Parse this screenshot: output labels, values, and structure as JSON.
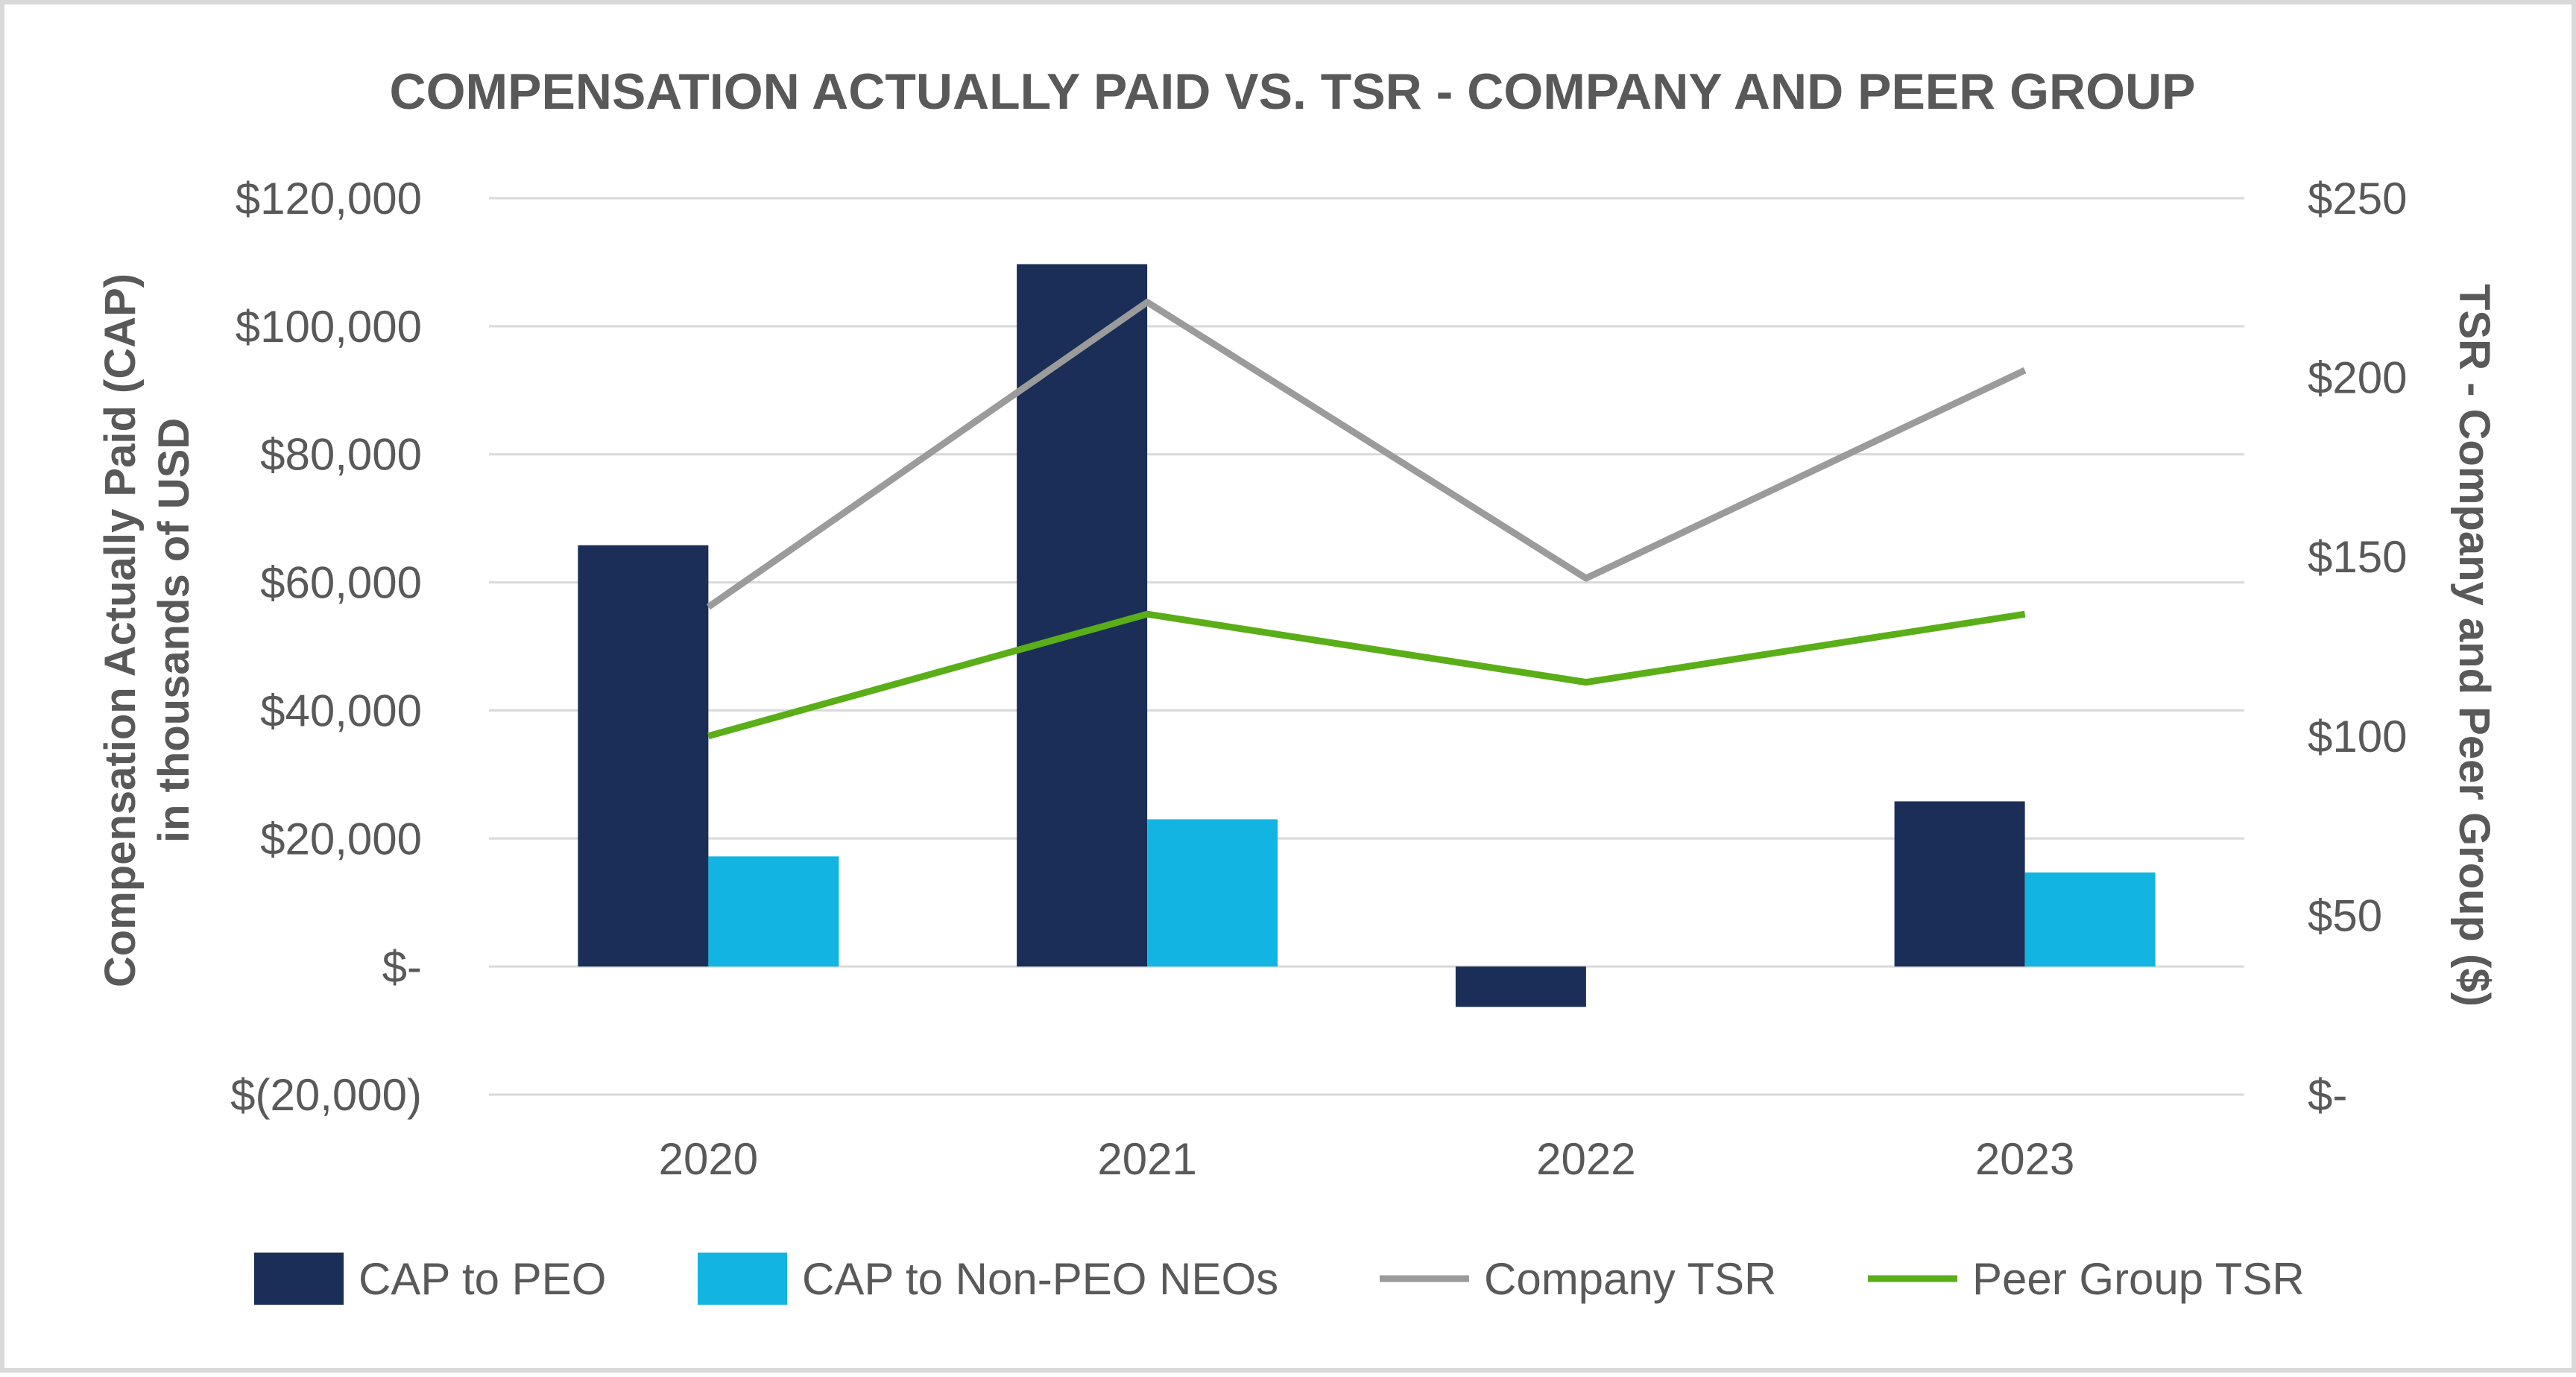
{
  "chart_data": {
    "type": "bar",
    "title": "COMPENSATION ACTUALLY PAID VS. TSR - COMPANY AND PEER GROUP",
    "categories": [
      "2020",
      "2021",
      "2022",
      "2023"
    ],
    "left_axis": {
      "label_line1": "Compensation Actually Paid (CAP)",
      "label_line2": "in thousands of USD",
      "ylim": [
        -20000,
        120000
      ],
      "ticks": [
        120000,
        100000,
        80000,
        60000,
        40000,
        20000,
        0,
        -20000
      ],
      "tick_labels": [
        "$120,000",
        "$100,000",
        "$80,000",
        "$60,000",
        "$40,000",
        "$20,000",
        "$-",
        "$(20,000)"
      ]
    },
    "right_axis": {
      "label": "TSR - Company and Peer Group ($)",
      "ylim": [
        0,
        250
      ],
      "ticks": [
        250,
        200,
        150,
        100,
        50,
        0
      ],
      "tick_labels": [
        "$250",
        "$200",
        "$150",
        "$100",
        "$50",
        "$-"
      ]
    },
    "grid": true,
    "bar_series": [
      {
        "name": "CAP to PEO",
        "color": "#1a2e57",
        "values": [
          65800,
          109700,
          -6300,
          25800
        ]
      },
      {
        "name": "CAP to Non-PEO NEOs",
        "color": "#12b5e1",
        "values": [
          17200,
          23000,
          0,
          14700
        ]
      }
    ],
    "line_series": [
      {
        "name": "Company TSR",
        "color": "#9b9b9b",
        "axis": "right",
        "values": [
          136,
          221,
          144,
          202
        ]
      },
      {
        "name": "Peer Group TSR",
        "color": "#5aae18",
        "axis": "right",
        "values": [
          100,
          134,
          115,
          134
        ]
      }
    ],
    "legend": [
      "CAP to PEO",
      "CAP to Non-PEO NEOs",
      "Company TSR",
      "Peer Group TSR"
    ],
    "legend_position": "bottom"
  }
}
